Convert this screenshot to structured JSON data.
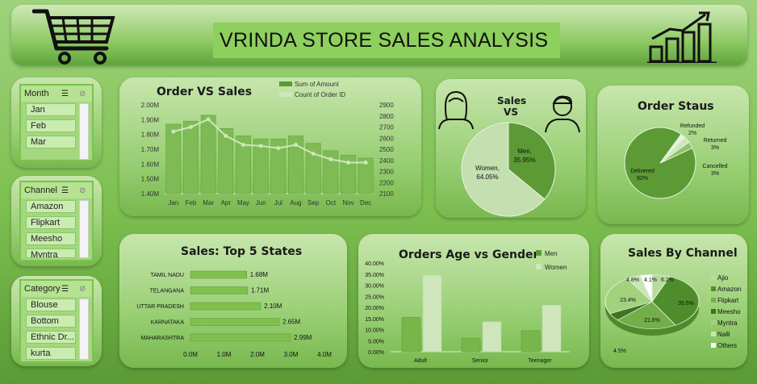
{
  "header": {
    "title": "VRINDA STORE SALES ANALYSIS",
    "cart_icon": "shopping-cart-icon",
    "growth_icon": "growth-chart-icon"
  },
  "slicers": {
    "month": {
      "title": "Month",
      "items": [
        "Jan",
        "Feb",
        "Mar"
      ]
    },
    "channel": {
      "title": "Channel",
      "items": [
        "Amazon",
        "Flipkart",
        "Meesho",
        "Myntra"
      ]
    },
    "category": {
      "title": "Category",
      "items": [
        "Blouse",
        "Bottom",
        "Ethnic Dr...",
        "kurta"
      ]
    }
  },
  "colors": {
    "dark_green": "#5b9a33",
    "light_green": "#cfe6bd",
    "panel": "#a6d67f"
  },
  "chart_data": [
    {
      "type": "bar",
      "title": "Order VS Sales",
      "categories": [
        "Jan",
        "Feb",
        "Mar",
        "Apr",
        "May",
        "Jun",
        "Jul",
        "Aug",
        "Sep",
        "Oct",
        "Nov",
        "Dec"
      ],
      "series": [
        {
          "name": "Sum of Amount",
          "values": [
            1.87,
            1.89,
            1.93,
            1.84,
            1.79,
            1.77,
            1.77,
            1.79,
            1.74,
            1.69,
            1.66,
            1.64
          ],
          "axis": "left"
        },
        {
          "name": "Count of Order ID",
          "values": [
            2660,
            2700,
            2770,
            2620,
            2540,
            2530,
            2510,
            2540,
            2460,
            2410,
            2380,
            2380
          ],
          "axis": "right",
          "type": "line"
        }
      ],
      "y_ticks_left": [
        "2.00M",
        "1.90M",
        "1.80M",
        "1.70M",
        "1.60M",
        "1.50M",
        "1.40M"
      ],
      "y_ticks_right": [
        "2900",
        "2800",
        "2700",
        "2600",
        "2500",
        "2400",
        "2300",
        "2200",
        "2100"
      ],
      "ylim_left": [
        1.4,
        2.0
      ],
      "ylim_right": [
        2100,
        2900
      ]
    },
    {
      "type": "pie",
      "title": "Sales VS",
      "slices": [
        {
          "label": "Men",
          "value": 35.95,
          "text": "35.95%"
        },
        {
          "label": "Women",
          "value": 64.05,
          "text": "64.05%"
        }
      ]
    },
    {
      "type": "pie",
      "title": "Order Staus",
      "slices": [
        {
          "label": "Delivered",
          "value": 92,
          "text": "92%"
        },
        {
          "label": "Refunded",
          "value": 2,
          "text": "2%"
        },
        {
          "label": "Returned",
          "value": 3,
          "text": "3%"
        },
        {
          "label": "Cancelled",
          "value": 3,
          "text": "3%"
        }
      ]
    },
    {
      "type": "bar",
      "title": "Sales: Top 5 States",
      "orientation": "horizontal",
      "categories": [
        "TAMIL NADU",
        "TELANGANA",
        "UTTAR PRADESH",
        "KARNATAKA",
        "MAHARASHTRA"
      ],
      "values": [
        1.68,
        1.71,
        2.1,
        2.65,
        2.99
      ],
      "labels": [
        "1.68M",
        "1.71M",
        "2.10M",
        "2.65M",
        "2.99M"
      ],
      "x_ticks": [
        "0.0M",
        "1.0M",
        "2.0M",
        "3.0M",
        "4.0M"
      ],
      "xlim": [
        0,
        4
      ]
    },
    {
      "type": "bar",
      "title": "Orders Age vs Gender",
      "categories": [
        "Adult",
        "Senior",
        "Teenager"
      ],
      "series": [
        {
          "name": "Men",
          "values": [
            15.5,
            6.0,
            9.5
          ]
        },
        {
          "name": "Women",
          "values": [
            34.5,
            13.5,
            21.0
          ]
        }
      ],
      "y_ticks": [
        "40.00%",
        "35.00%",
        "30.00%",
        "25.00%",
        "20.00%",
        "15.00%",
        "10.00%",
        "5.00%",
        "0.00%"
      ],
      "ylim": [
        0,
        40
      ]
    },
    {
      "type": "pie",
      "title": "Sales By Channel",
      "slices": [
        {
          "label": "Ajio",
          "value": 6.2,
          "text": "6.2%"
        },
        {
          "label": "Amazon",
          "value": 35.5,
          "text": "35.5%"
        },
        {
          "label": "Flipkart",
          "value": 21.6,
          "text": "21.6%"
        },
        {
          "label": "Meesho",
          "value": 4.5,
          "text": "4.5%"
        },
        {
          "label": "Myntra",
          "value": 23.4,
          "text": "23.4%"
        },
        {
          "label": "Nalli",
          "value": 4.8,
          "text": "4.8%"
        },
        {
          "label": "Others",
          "value": 4.1,
          "text": "4.1%"
        }
      ]
    }
  ]
}
